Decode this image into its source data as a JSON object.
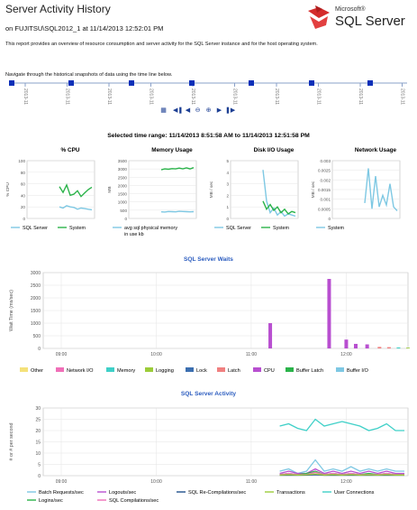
{
  "header": {
    "title": "Server Activity History",
    "subtitle": "on FUJITSU\\SQL2012_1 at 11/14/2013 12:52:01 PM",
    "description": "This report provides an overview of resource consumption and server activity for the SQL Server instance and for the host operating system.",
    "nav_hint": "Navigate through the historical snapshots of data using the time line below.",
    "logo_small": "Microsoft®",
    "logo_big": "SQL Server"
  },
  "timeline": {
    "ticks": [
      "2013-11-14 11:20",
      "2013-11-14 11:30",
      "2013-11-14 11:40",
      "2013-11-14 11:50",
      "2013-11-14 12:00",
      "2013-11-14 12:10",
      "2013-11-14 12:20",
      "2013-11-14 12:30",
      "2013-11-14 12:40",
      "2013-11-14 12:50"
    ],
    "controls": [
      "calendar-icon",
      "first-icon",
      "previous-icon",
      "zoom-out-icon",
      "zoom-in-icon",
      "next-icon",
      "last-icon"
    ]
  },
  "time_range": "Selected time range:  11/14/2013 8:51:58 AM to 11/14/2013 12:51:58 PM",
  "chart_data": [
    {
      "type": "line",
      "title": "% CPU",
      "ylabel": "% CPU",
      "ylim": [
        0,
        100
      ],
      "yticks": [
        "100",
        "80",
        "60",
        "40",
        "20",
        "0"
      ],
      "series": [
        {
          "name": "SQL Server",
          "color": "#7ec8e3",
          "values": [
            20,
            18,
            22,
            20,
            19,
            16,
            18,
            17,
            16,
            15
          ]
        },
        {
          "name": "System",
          "color": "#2bb34a",
          "values": [
            55,
            45,
            58,
            40,
            42,
            48,
            38,
            44,
            50,
            54
          ]
        }
      ],
      "legend": [
        "SQL Server",
        "System"
      ]
    },
    {
      "type": "line",
      "title": "Memory Usage",
      "ylabel": "MB",
      "ylim": [
        0,
        3500
      ],
      "yticks": [
        "3500",
        "3000",
        "2500",
        "2000",
        "1500",
        "1000",
        "500",
        "0"
      ],
      "series": [
        {
          "name": "System",
          "color": "#2bb34a",
          "values": [
            2950,
            3000,
            2980,
            3020,
            3000,
            3050,
            3010,
            3060,
            3000,
            3080
          ]
        },
        {
          "name": "avg sql physical memory in use kb",
          "color": "#7ec8e3",
          "values": [
            400,
            390,
            420,
            410,
            400,
            430,
            420,
            410,
            400,
            410
          ]
        }
      ],
      "legend": [
        "avg sql physical memory in use kb"
      ]
    },
    {
      "type": "line",
      "title": "Disk I/O Usage",
      "ylabel": "MB / sec",
      "ylim": [
        0,
        5
      ],
      "yticks": [
        "5",
        "4",
        "3",
        "2",
        "1",
        "0"
      ],
      "series": [
        {
          "name": "SQL Server",
          "color": "#7ec8e3",
          "values": [
            4.2,
            1.5,
            0.5,
            0.9,
            0.3,
            0.6,
            0.2,
            0.4,
            0.3,
            0.2
          ]
        },
        {
          "name": "System",
          "color": "#2bb34a",
          "values": [
            1.5,
            0.8,
            1.2,
            0.7,
            1.0,
            0.5,
            0.8,
            0.4,
            0.6,
            0.5
          ]
        }
      ],
      "legend": [
        "SQL Server",
        "System"
      ]
    },
    {
      "type": "line",
      "title": "Network Usage",
      "ylabel": "MB / sec",
      "ylim": [
        0,
        0.003
      ],
      "yticks": [
        "0.003",
        "0.0025",
        "0.002",
        "0.0015",
        "0.001",
        "0.0005",
        "0"
      ],
      "series": [
        {
          "name": "System",
          "color": "#7ec8e3",
          "values": [
            0.0008,
            0.0026,
            0.0005,
            0.0022,
            0.0006,
            0.0012,
            0.0007,
            0.0018,
            0.0006,
            0.0004
          ]
        }
      ],
      "legend": [
        "System"
      ]
    },
    {
      "type": "bar",
      "title": "SQL Server Waits",
      "ylabel": "Wait Time (ms/sec)",
      "ylim": [
        0,
        3000
      ],
      "yticks": [
        "3000",
        "2500",
        "2000",
        "1500",
        "1000",
        "500",
        "0"
      ],
      "xticks": [
        "09:00",
        "10:00",
        "11:00",
        "12:00"
      ],
      "series": [
        {
          "name": "CPU",
          "color": "#b84fd0",
          "points": [
            [
              11.2,
              1000
            ],
            [
              11.82,
              2750
            ],
            [
              12.0,
              350
            ],
            [
              12.1,
              180
            ],
            [
              12.22,
              160
            ]
          ]
        },
        {
          "name": "Latch",
          "color": "#f08080",
          "points": [
            [
              12.35,
              60
            ],
            [
              12.45,
              50
            ]
          ]
        },
        {
          "name": "Memory",
          "color": "#3fd0c8",
          "points": [
            [
              12.55,
              40
            ]
          ]
        },
        {
          "name": "Logging",
          "color": "#9ccc3a",
          "points": [
            [
              12.65,
              30
            ]
          ]
        }
      ],
      "legend": [
        "Other",
        "Network I/O",
        "Memory",
        "Logging",
        "Lock",
        "Latch",
        "CPU",
        "Buffer Latch",
        "Buffer I/O"
      ],
      "legend_colors": [
        "#f4e17a",
        "#f06fb8",
        "#3fd0c8",
        "#9ccc3a",
        "#3c6fb0",
        "#f08080",
        "#b84fd0",
        "#2bb34a",
        "#7ec8e3"
      ]
    },
    {
      "type": "line",
      "title": "SQL Server Activity",
      "ylabel": "# or # per second",
      "ylim": [
        0,
        30
      ],
      "yticks": [
        "30",
        "25",
        "20",
        "15",
        "10",
        "5",
        "0"
      ],
      "xticks": [
        "09:00",
        "10:00",
        "11:00",
        "12:00"
      ],
      "series": [
        {
          "name": "User Connections",
          "color": "#3fd0c8",
          "values": [
            22,
            23,
            21,
            20,
            25,
            22,
            23,
            24,
            23,
            22,
            20,
            21,
            23,
            20,
            20
          ]
        },
        {
          "name": "Batch Requests/sec",
          "color": "#7ec8e3",
          "values": [
            2,
            3,
            1,
            2,
            7,
            2,
            3,
            2,
            4,
            2,
            3,
            2,
            3,
            2,
            2
          ]
        },
        {
          "name": "Logouts/sec",
          "color": "#b84fd0",
          "values": [
            1,
            2,
            1,
            1,
            3,
            1,
            2,
            1,
            2,
            1,
            2,
            1,
            2,
            1,
            1
          ]
        },
        {
          "name": "Logins/sec",
          "color": "#2bb34a",
          "values": [
            0.5,
            1,
            0.5,
            1,
            2,
            0.5,
            1,
            0.5,
            1,
            0.5,
            1,
            0.5,
            1,
            0.5,
            0.5
          ]
        },
        {
          "name": "SQL Compilations/sec",
          "color": "#f06fb8",
          "values": [
            0.5,
            1,
            0.5,
            0.5,
            1.5,
            0.5,
            1,
            0.5,
            1,
            0.5,
            0.5,
            0.5,
            1,
            0.5,
            0.5
          ]
        },
        {
          "name": "SQL Re-Compilations/sec",
          "color": "#1f4e8c",
          "values": [
            0.2,
            0.3,
            0.2,
            0.3,
            0.5,
            0.2,
            0.3,
            0.2,
            0.3,
            0.2,
            0.3,
            0.2,
            0.3,
            0.2,
            0.2
          ]
        },
        {
          "name": "Transactions",
          "color": "#9ccc3a",
          "values": [
            0.3,
            0.5,
            0.3,
            0.4,
            0.8,
            0.3,
            0.5,
            0.3,
            0.5,
            0.3,
            0.4,
            0.3,
            0.5,
            0.3,
            0.3
          ]
        }
      ],
      "legend": [
        "Batch Requests/sec",
        "Logouts/sec",
        "SQL Re-Compilations/sec",
        "Transactions",
        "User Connections",
        "Logins/sec",
        "SQL Compilations/sec"
      ]
    }
  ]
}
